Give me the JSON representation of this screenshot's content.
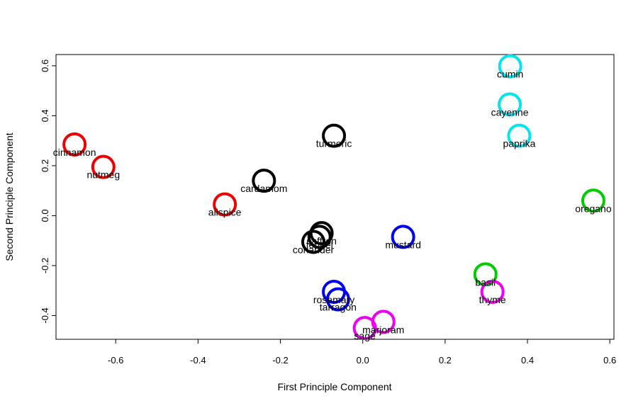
{
  "chart_data": {
    "type": "scatter",
    "title": "",
    "xlabel": "First Principle Component",
    "ylabel": "Second Principle Component",
    "xlim": [
      -0.745,
      0.61
    ],
    "ylim": [
      -0.495,
      0.645
    ],
    "xticks": [
      -0.6,
      -0.4,
      -0.2,
      0.0,
      0.2,
      0.4,
      0.6
    ],
    "yticks": [
      -0.4,
      -0.2,
      0.0,
      0.2,
      0.4,
      0.6
    ],
    "xtick_labels": [
      "-0.6",
      "-0.4",
      "-0.2",
      "0.0",
      "0.2",
      "0.4",
      "0.6"
    ],
    "ytick_labels": [
      "-0.4",
      "-0.2",
      "0.0",
      "0.2",
      "0.4",
      "0.6"
    ],
    "grid": false,
    "legend": "none",
    "marker": "open-circle",
    "points": [
      {
        "label": "cumin",
        "x": 0.358,
        "y": 0.598,
        "color": "#00e5ee"
      },
      {
        "label": "cayenne",
        "x": 0.357,
        "y": 0.445,
        "color": "#00e5ee"
      },
      {
        "label": "paprika",
        "x": 0.38,
        "y": 0.32,
        "color": "#00e5ee"
      },
      {
        "label": "turmeric",
        "x": -0.07,
        "y": 0.32,
        "color": "#000000"
      },
      {
        "label": "cinnamon",
        "x": -0.7,
        "y": 0.285,
        "color": "#ee0000"
      },
      {
        "label": "nutmeg",
        "x": -0.63,
        "y": 0.195,
        "color": "#ee0000"
      },
      {
        "label": "cardamom",
        "x": -0.24,
        "y": 0.14,
        "color": "#000000"
      },
      {
        "label": "oregano",
        "x": 0.56,
        "y": 0.06,
        "color": "#00cc00"
      },
      {
        "label": "allspice",
        "x": -0.335,
        "y": 0.045,
        "color": "#ee0000"
      },
      {
        "label": "saffron",
        "x": -0.1,
        "y": -0.07,
        "color": "#000000"
      },
      {
        "label": "fennel",
        "x": -0.105,
        "y": -0.085,
        "color": "#000000"
      },
      {
        "label": "coriander",
        "x": -0.12,
        "y": -0.105,
        "color": "#000000"
      },
      {
        "label": "mustard",
        "x": 0.098,
        "y": -0.085,
        "color": "#0000ee"
      },
      {
        "label": "basil",
        "x": 0.298,
        "y": -0.235,
        "color": "#00cc00"
      },
      {
        "label": "thyme",
        "x": 0.315,
        "y": -0.305,
        "color": "#ee00ee"
      },
      {
        "label": "rosemary",
        "x": -0.07,
        "y": -0.305,
        "color": "#0000ee"
      },
      {
        "label": "tarragon",
        "x": -0.06,
        "y": -0.335,
        "color": "#0000ee"
      },
      {
        "label": "marjoram",
        "x": 0.05,
        "y": -0.425,
        "color": "#ee00ee"
      },
      {
        "label": "sage",
        "x": 0.005,
        "y": -0.45,
        "color": "#ee00ee"
      }
    ]
  }
}
